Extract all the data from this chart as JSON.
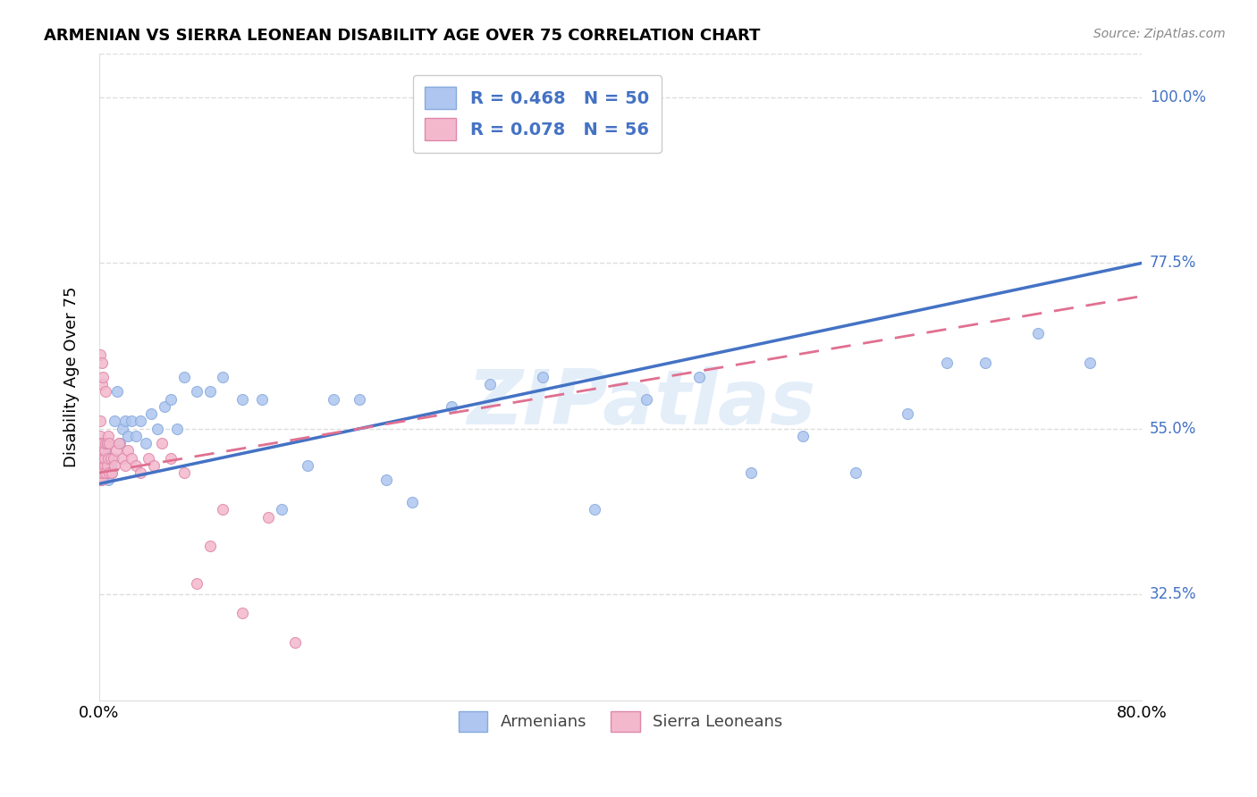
{
  "title": "ARMENIAN VS SIERRA LEONEAN DISABILITY AGE OVER 75 CORRELATION CHART",
  "source": "Source: ZipAtlas.com",
  "ylabel_label": "Disability Age Over 75",
  "legend_armenians": {
    "R": 0.468,
    "N": 50,
    "color": "#aec6f0"
  },
  "legend_sierra": {
    "R": 0.078,
    "N": 56,
    "color": "#f4b8cc"
  },
  "armenian_x": [
    0.002,
    0.003,
    0.004,
    0.005,
    0.006,
    0.007,
    0.008,
    0.009,
    0.01,
    0.012,
    0.014,
    0.016,
    0.018,
    0.02,
    0.022,
    0.025,
    0.028,
    0.032,
    0.036,
    0.04,
    0.045,
    0.05,
    0.055,
    0.06,
    0.065,
    0.075,
    0.085,
    0.095,
    0.11,
    0.125,
    0.14,
    0.16,
    0.18,
    0.2,
    0.22,
    0.24,
    0.27,
    0.3,
    0.34,
    0.38,
    0.42,
    0.46,
    0.5,
    0.54,
    0.58,
    0.62,
    0.65,
    0.68,
    0.72,
    0.76
  ],
  "armenian_y": [
    0.5,
    0.51,
    0.49,
    0.52,
    0.53,
    0.48,
    0.51,
    0.5,
    0.49,
    0.56,
    0.6,
    0.53,
    0.55,
    0.56,
    0.54,
    0.56,
    0.54,
    0.56,
    0.53,
    0.57,
    0.55,
    0.58,
    0.59,
    0.55,
    0.62,
    0.6,
    0.6,
    0.62,
    0.59,
    0.59,
    0.44,
    0.5,
    0.59,
    0.59,
    0.48,
    0.45,
    0.58,
    0.61,
    0.62,
    0.44,
    0.59,
    0.62,
    0.49,
    0.54,
    0.49,
    0.57,
    0.64,
    0.64,
    0.68,
    0.64
  ],
  "sierra_x": [
    0.001,
    0.001,
    0.001,
    0.001,
    0.001,
    0.001,
    0.001,
    0.001,
    0.001,
    0.001,
    0.002,
    0.002,
    0.002,
    0.002,
    0.002,
    0.002,
    0.002,
    0.003,
    0.003,
    0.003,
    0.003,
    0.004,
    0.004,
    0.004,
    0.005,
    0.005,
    0.005,
    0.006,
    0.006,
    0.007,
    0.007,
    0.008,
    0.008,
    0.009,
    0.01,
    0.011,
    0.012,
    0.013,
    0.015,
    0.018,
    0.02,
    0.022,
    0.025,
    0.028,
    0.032,
    0.038,
    0.042,
    0.048,
    0.055,
    0.065,
    0.075,
    0.085,
    0.095,
    0.11,
    0.13,
    0.15
  ],
  "sierra_y": [
    0.5,
    0.51,
    0.49,
    0.54,
    0.56,
    0.53,
    0.48,
    0.52,
    0.5,
    0.65,
    0.48,
    0.5,
    0.52,
    0.53,
    0.49,
    0.61,
    0.64,
    0.49,
    0.51,
    0.53,
    0.62,
    0.5,
    0.51,
    0.52,
    0.49,
    0.53,
    0.6,
    0.5,
    0.53,
    0.51,
    0.54,
    0.49,
    0.53,
    0.51,
    0.49,
    0.51,
    0.5,
    0.52,
    0.53,
    0.51,
    0.5,
    0.52,
    0.51,
    0.5,
    0.49,
    0.51,
    0.5,
    0.53,
    0.51,
    0.49,
    0.34,
    0.39,
    0.44,
    0.3,
    0.43,
    0.26
  ],
  "watermark": "ZIPatlas",
  "blue_line_color": "#4472c4",
  "pink_line_color": "#e07090",
  "dot_size": 75,
  "xlim": [
    0,
    0.8
  ],
  "ylim": [
    0.18,
    1.06
  ],
  "ytick_values": [
    0.325,
    0.55,
    0.775,
    1.0
  ],
  "ytick_labels": [
    "32.5%",
    "55.0%",
    "77.5%",
    "100.0%"
  ],
  "grid_color": "#dddddd",
  "arm_line_x0": 0.0,
  "arm_line_x1": 0.8,
  "arm_line_y0": 0.475,
  "arm_line_y1": 0.775,
  "sier_line_x0": 0.0,
  "sier_line_x1": 0.8,
  "sier_line_y0": 0.49,
  "sier_line_y1": 0.73
}
